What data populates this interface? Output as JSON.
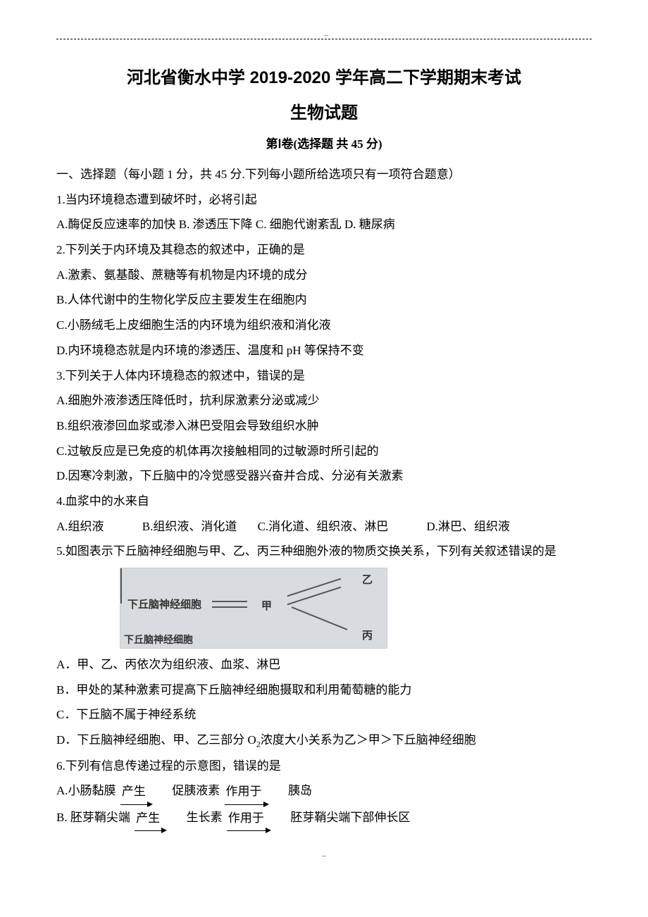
{
  "header": {
    "top_mark": "--",
    "title_main": "河北省衡水中学 2019-2020 学年高二下学期期末考试",
    "title_sub": "生物试题",
    "section": "第Ⅰ卷(选择题  共 45 分)",
    "bottom_mark": "--"
  },
  "instructions": "一、选择题（每小题 1 分，共 45 分.下列每小题所给选项只有一项符合题意）",
  "q1": {
    "stem": "1.当内环境稳态遭到破坏时，必将引起",
    "opts": "A.酶促反应速率的加快 B. 渗透压下降    C. 细胞代谢紊乱    D. 糖尿病"
  },
  "q2": {
    "stem": "2.下列关于内环境及其稳态的叙述中，正确的是",
    "a": "A.激素、氨基酸、蔗糖等有机物是内环境的成分",
    "b": "B.人体代谢中的生物化学反应主要发生在细胞内",
    "c": "C.小肠绒毛上皮细胞生活的内环境为组织液和消化液",
    "d": "D.内环境稳态就是内环境的渗透压、温度和 pH 等保持不变"
  },
  "q3": {
    "stem": "3.下列关于人体内环境稳态的叙述中，错误的是",
    "a": "A.细胞外液渗透压降低时，抗利尿激素分泌或减少",
    "b": "B.组织液渗回血浆或渗入淋巴受阻会导致组织水肿",
    "c": "C.过敏反应是已免疫的机体再次接触相同的过敏源时所引起的",
    "d": "D.因寒冷刺激，下丘脑中的冷觉感受器兴奋并合成、分泌有关激素"
  },
  "q4": {
    "stem": "4.血浆中的水来自",
    "opts_a": "A.组织液",
    "opts_b": "B.组织液、消化道",
    "opts_c": "C.消化道、组织液、淋巴",
    "opts_d": "D.淋巴、组织液"
  },
  "q5": {
    "stem": "5.如图表示下丘脑神经细胞与甲、乙、丙三种细胞外液的物质交换关系，下列有关叙述错误的是",
    "fig": {
      "hypothalamus": "下丘脑神经细胞",
      "jia": "甲",
      "yi": "乙",
      "bing": "丙",
      "bottom": "下丘脑神经细胞"
    },
    "a": "A．甲、乙、丙依次为组织液、血浆、淋巴",
    "b": "B．甲处的某种激素可提高下丘脑神经细胞摄取和利用葡萄糖的能力",
    "c": "C．下丘脑不属于神经系统",
    "d_pre": "D．下丘脑神经细胞、甲、乙三部分 O",
    "d_sub": "2",
    "d_post": "浓度大小关系为乙＞甲＞下丘脑神经细胞"
  },
  "q6": {
    "stem": "6.下列有信息传递过程的示意图，错误的是",
    "a": {
      "prefix": "A.小肠黏膜",
      "arrow1": "产生",
      "mid": "促胰液素",
      "arrow2": "作用于",
      "end": "胰岛"
    },
    "b": {
      "prefix": "B. 胚芽鞘尖端",
      "arrow1": "产生",
      "mid": "生长素",
      "arrow2": "作用于",
      "end": "胚芽鞘尖端下部伸长区"
    }
  },
  "colors": {
    "text": "#000000",
    "background": "#ffffff",
    "figure_bg": "#d8dce0"
  },
  "typography": {
    "title_fontsize": 24,
    "body_fontsize": 17,
    "line_height": 2.1,
    "title_font": "SimHei",
    "body_font": "SimSun"
  }
}
